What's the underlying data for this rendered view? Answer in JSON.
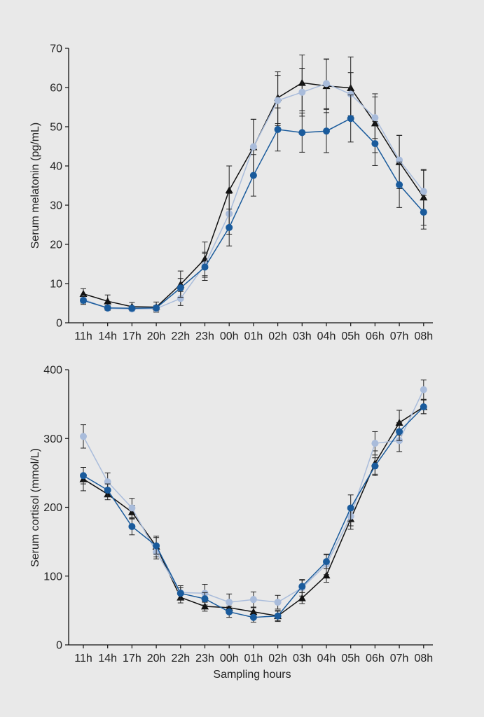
{
  "chart_data": [
    {
      "type": "line",
      "ylabel": "Serum melatonin (pg/mL)",
      "xlabel": "",
      "ylim": [
        0,
        70
      ],
      "yticks": [
        0,
        10,
        20,
        30,
        40,
        50,
        60,
        70
      ],
      "categories": [
        "11h",
        "14h",
        "17h",
        "20h",
        "22h",
        "23h",
        "00h",
        "01h",
        "02h",
        "03h",
        "04h",
        "05h",
        "06h",
        "07h",
        "08h"
      ],
      "grid": false,
      "legend": "none",
      "series": [
        {
          "color": "#111111",
          "marker": "triangle",
          "values": [
            7.4,
            5.5,
            4.1,
            4.0,
            9.8,
            16.3,
            33.8,
            44.8,
            57.4,
            61.2,
            60.4,
            59.9,
            50.9,
            41.0,
            32.0
          ],
          "err": [
            1.3,
            1.6,
            1.1,
            1.3,
            3.4,
            4.3,
            6.2,
            7.1,
            6.6,
            7.1,
            6.8,
            7.9,
            7.5,
            6.8,
            7.1
          ]
        },
        {
          "color": "#a9bcdb",
          "marker": "circle",
          "values": [
            6.0,
            3.7,
            3.5,
            3.6,
            6.2,
            14.8,
            27.8,
            44.9,
            56.7,
            58.8,
            61.0,
            58.3,
            52.3,
            41.5,
            33.5
          ],
          "err": [
            1.0,
            0.5,
            0.5,
            0.6,
            1.8,
            3.2,
            5.2,
            7.0,
            6.4,
            6.1,
            6.3,
            5.5,
            5.3,
            6.3,
            5.4
          ]
        },
        {
          "color": "#1a5b9c",
          "marker": "circle",
          "values": [
            5.7,
            3.8,
            3.7,
            3.8,
            8.9,
            14.2,
            24.3,
            37.6,
            49.3,
            48.5,
            48.9,
            52.1,
            45.7,
            35.2,
            28.2
          ],
          "err": [
            1.0,
            0.6,
            0.5,
            0.6,
            2.4,
            3.4,
            4.7,
            5.3,
            5.5,
            5.0,
            5.5,
            6.0,
            5.6,
            5.8,
            4.3
          ]
        }
      ]
    },
    {
      "type": "line",
      "ylabel": "Serum cortisol (mmol/L)",
      "xlabel": "Sampling hours",
      "ylim": [
        0,
        400
      ],
      "yticks": [
        0,
        100,
        200,
        300,
        400
      ],
      "categories": [
        "11h",
        "14h",
        "17h",
        "20h",
        "22h",
        "23h",
        "00h",
        "01h",
        "02h",
        "03h",
        "04h",
        "05h",
        "06h",
        "07h",
        "08h"
      ],
      "grid": false,
      "legend": "none",
      "series": [
        {
          "color": "#111111",
          "marker": "triangle",
          "values": [
            241,
            219,
            193,
            143,
            69,
            56,
            54,
            48,
            42,
            68,
            101,
            183,
            264,
            323,
            346
          ],
          "err": [
            17,
            8,
            10,
            15,
            8,
            7,
            7,
            6,
            8,
            8,
            10,
            15,
            18,
            18,
            10
          ]
        },
        {
          "color": "#a9bcdb",
          "marker": "circle",
          "values": [
            303,
            237,
            199,
            135,
            76,
            75,
            62,
            66,
            62,
            83,
            117,
            187,
            293,
            297,
            371
          ],
          "err": [
            17,
            13,
            14,
            10,
            10,
            13,
            12,
            11,
            10,
            12,
            15,
            14,
            17,
            16,
            14
          ]
        },
        {
          "color": "#1a5b9c",
          "marker": "circle",
          "values": [
            246,
            225,
            172,
            144,
            75,
            67,
            48,
            40,
            42,
            85,
            121,
            199,
            260,
            310,
            346
          ],
          "err": [
            12,
            9,
            12,
            12,
            8,
            9,
            8,
            7,
            7,
            9,
            10,
            19,
            12,
            13,
            10
          ]
        }
      ]
    }
  ]
}
